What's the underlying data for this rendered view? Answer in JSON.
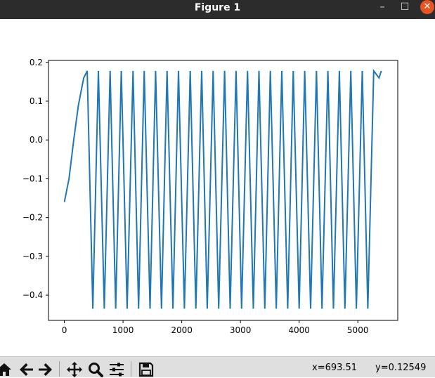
{
  "window": {
    "title": "Figure 1",
    "min_glyph": "–",
    "max_glyph": "☐",
    "close_glyph": "✕"
  },
  "chart_data": {
    "type": "line",
    "title": "",
    "xlabel": "",
    "ylabel": "",
    "xlim": [
      -270,
      5680
    ],
    "ylim": [
      -0.465,
      0.205
    ],
    "xticks": [
      0,
      1000,
      2000,
      3000,
      4000,
      5000
    ],
    "yticks": [
      0.2,
      0.1,
      0.0,
      -0.1,
      -0.2,
      -0.3,
      -0.4
    ],
    "ytick_labels": [
      "0.2",
      "0.1",
      "0.0",
      "−0.1",
      "−0.2",
      "−0.3",
      "−0.4"
    ],
    "series": [
      {
        "color": "#1f77b4",
        "x": [
          0,
          80,
          160,
          240,
          330,
          390,
          485,
          580,
          680,
          780,
          875,
          970,
          1070,
          1170,
          1265,
          1360,
          1460,
          1555,
          1655,
          1750,
          1850,
          1945,
          2045,
          2145,
          2240,
          2340,
          2435,
          2535,
          2630,
          2730,
          2825,
          2925,
          3020,
          3120,
          3220,
          3315,
          3415,
          3510,
          3610,
          3705,
          3805,
          3900,
          4000,
          4095,
          4195,
          4295,
          4390,
          4490,
          4585,
          4685,
          4780,
          4880,
          4975,
          5075,
          5170,
          5270,
          5360,
          5400
        ],
        "y": [
          -0.16,
          -0.1,
          0.0,
          0.09,
          0.16,
          0.178,
          -0.435,
          0.178,
          -0.435,
          0.178,
          -0.435,
          0.178,
          -0.435,
          0.178,
          -0.435,
          0.178,
          -0.435,
          0.178,
          -0.435,
          0.178,
          -0.435,
          0.178,
          -0.435,
          0.178,
          -0.435,
          0.178,
          -0.435,
          0.178,
          -0.435,
          0.178,
          -0.435,
          0.178,
          -0.435,
          0.178,
          -0.435,
          0.178,
          -0.435,
          0.178,
          -0.435,
          0.178,
          -0.435,
          0.178,
          -0.435,
          0.178,
          -0.435,
          0.178,
          -0.435,
          0.178,
          -0.435,
          0.178,
          -0.435,
          0.178,
          -0.435,
          0.178,
          -0.435,
          0.178,
          0.16,
          0.178
        ]
      }
    ]
  },
  "toolbar": {
    "icons": [
      "home-icon",
      "back-icon",
      "forward-icon",
      "pan-icon",
      "zoom-icon",
      "subplots-icon",
      "save-icon"
    ],
    "x_readout": "x=693.51",
    "y_readout": "y=0.12549"
  }
}
